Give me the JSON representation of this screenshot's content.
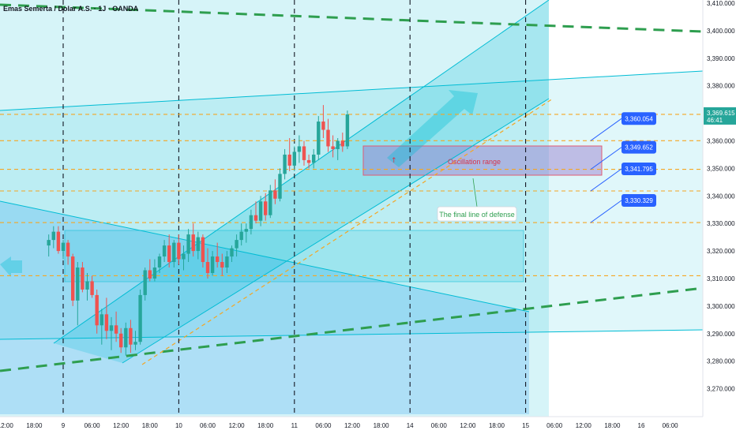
{
  "chart_data": {
    "type": "candlestick",
    "title": "Emas Semerta / Dolar A.S. · 1J · OANDA",
    "ylim": [
      3265,
      3410
    ],
    "y_ticks": [
      {
        "value": 3270,
        "label": "3,270.000"
      },
      {
        "value": 3280,
        "label": "3,280.000"
      },
      {
        "value": 3290,
        "label": "3,290.000"
      },
      {
        "value": 3300,
        "label": "3,300.000"
      },
      {
        "value": 3310,
        "label": "3,310.000"
      },
      {
        "value": 3320,
        "label": "3,320.000"
      },
      {
        "value": 3330,
        "label": "3,330.000"
      },
      {
        "value": 3340,
        "label": "3,340.000"
      },
      {
        "value": 3350,
        "label": "3,350.000"
      },
      {
        "value": 3360,
        "label": "3,360.000"
      },
      {
        "value": 3370,
        "label": "3,370.000"
      },
      {
        "value": 3380,
        "label": "3,380.000"
      },
      {
        "value": 3390,
        "label": "3,390.000"
      },
      {
        "value": 3400,
        "label": "3,400.000"
      },
      {
        "value": 3410,
        "label": "3,410.000"
      }
    ],
    "x_ticks": [
      {
        "bar": -7,
        "label": "12:00"
      },
      {
        "bar": -1,
        "label": "18:00"
      },
      {
        "bar": 5,
        "label": "9"
      },
      {
        "bar": 11,
        "label": "06:00"
      },
      {
        "bar": 17,
        "label": "12:00"
      },
      {
        "bar": 23,
        "label": "18:00"
      },
      {
        "bar": 29,
        "label": "10"
      },
      {
        "bar": 35,
        "label": "06:00"
      },
      {
        "bar": 41,
        "label": "12:00"
      },
      {
        "bar": 47,
        "label": "18:00"
      },
      {
        "bar": 53,
        "label": "11"
      },
      {
        "bar": 59,
        "label": "06:00"
      },
      {
        "bar": 65,
        "label": "12:00"
      },
      {
        "bar": 71,
        "label": "18:00"
      },
      {
        "bar": 77,
        "label": "14"
      },
      {
        "bar": 83,
        "label": "06:00"
      },
      {
        "bar": 89,
        "label": "12:00"
      },
      {
        "bar": 95,
        "label": "18:00"
      },
      {
        "bar": 101,
        "label": "15"
      },
      {
        "bar": 107,
        "label": "06:00"
      },
      {
        "bar": 113,
        "label": "12:00"
      },
      {
        "bar": 119,
        "label": "18:00"
      },
      {
        "bar": 125,
        "label": "16"
      },
      {
        "bar": 131,
        "label": "06:00"
      }
    ],
    "day_separators": [
      5,
      29,
      53,
      77,
      101
    ],
    "candles": [
      [
        3322,
        3326,
        3318,
        3324
      ],
      [
        3324,
        3329,
        3321,
        3327
      ],
      [
        3327,
        3329,
        3319,
        3320
      ],
      [
        3320,
        3324,
        3317,
        3323
      ],
      [
        3323,
        3324,
        3315,
        3318
      ],
      [
        3318,
        3319,
        3300,
        3302
      ],
      [
        3302,
        3316,
        3293,
        3314
      ],
      [
        3314,
        3316,
        3305,
        3306
      ],
      [
        3306,
        3312,
        3302,
        3309
      ],
      [
        3309,
        3311,
        3303,
        3304
      ],
      [
        3304,
        3306,
        3290,
        3293
      ],
      [
        3293,
        3299,
        3286,
        3297
      ],
      [
        3297,
        3303,
        3288,
        3291
      ],
      [
        3291,
        3296,
        3284,
        3293
      ],
      [
        3293,
        3298,
        3287,
        3290
      ],
      [
        3290,
        3292,
        3283,
        3285
      ],
      [
        3285,
        3294,
        3282,
        3292
      ],
      [
        3292,
        3295,
        3283,
        3286
      ],
      [
        3286,
        3291,
        3284,
        3287
      ],
      [
        3287,
        3306,
        3286,
        3304
      ],
      [
        3304,
        3314,
        3302,
        3313
      ],
      [
        3313,
        3317,
        3309,
        3310
      ],
      [
        3310,
        3317,
        3309,
        3314
      ],
      [
        3314,
        3319,
        3312,
        3318
      ],
      [
        3318,
        3324,
        3316,
        3322
      ],
      [
        3322,
        3326,
        3314,
        3316
      ],
      [
        3316,
        3324,
        3314,
        3323
      ],
      [
        3323,
        3326,
        3315,
        3317
      ],
      [
        3317,
        3322,
        3313,
        3319
      ],
      [
        3319,
        3328,
        3316,
        3326
      ],
      [
        3326,
        3330,
        3318,
        3320
      ],
      [
        3320,
        3327,
        3317,
        3325
      ],
      [
        3325,
        3326,
        3314,
        3316
      ],
      [
        3316,
        3321,
        3310,
        3312
      ],
      [
        3312,
        3320,
        3311,
        3318
      ],
      [
        3318,
        3323,
        3314,
        3316
      ],
      [
        3316,
        3319,
        3311,
        3314
      ],
      [
        3314,
        3320,
        3312,
        3318
      ],
      [
        3318,
        3322,
        3316,
        3321
      ],
      [
        3321,
        3326,
        3318,
        3324
      ],
      [
        3324,
        3330,
        3322,
        3327
      ],
      [
        3327,
        3330,
        3323,
        3328
      ],
      [
        3328,
        3335,
        3326,
        3333
      ],
      [
        3333,
        3338,
        3330,
        3331
      ],
      [
        3331,
        3340,
        3329,
        3338
      ],
      [
        3338,
        3341,
        3331,
        3333
      ],
      [
        3333,
        3344,
        3332,
        3342
      ],
      [
        3342,
        3346,
        3337,
        3339
      ],
      [
        3339,
        3350,
        3338,
        3348
      ],
      [
        3348,
        3357,
        3346,
        3355
      ],
      [
        3355,
        3361,
        3349,
        3351
      ],
      [
        3351,
        3358,
        3349,
        3356
      ],
      [
        3356,
        3362,
        3352,
        3358
      ],
      [
        3358,
        3360,
        3351,
        3353
      ],
      [
        3353,
        3355,
        3350,
        3352
      ],
      [
        3352,
        3357,
        3350,
        3355
      ],
      [
        3355,
        3369,
        3353,
        3367
      ],
      [
        3367,
        3373,
        3361,
        3364
      ],
      [
        3364,
        3368,
        3356,
        3358
      ],
      [
        3358,
        3362,
        3354,
        3357
      ],
      [
        3357,
        3361,
        3353,
        3360
      ],
      [
        3360,
        3363,
        3356,
        3358
      ],
      [
        3358,
        3371,
        3357,
        3369.6
      ]
    ],
    "candle_start_bar": 2,
    "levels": [
      {
        "value": 3360.054,
        "label": "3,360.054"
      },
      {
        "value": 3349.652,
        "label": "3,349.652"
      },
      {
        "value": 3341.795,
        "label": "3,341.795"
      },
      {
        "value": 3330.329,
        "label": "3,330.329"
      }
    ],
    "current_price": {
      "value": 3369.615,
      "label": "3,369.615",
      "countdown": "46:41"
    },
    "annotations": {
      "oscillation": "Oscillation range",
      "defense": "The final line of defense"
    },
    "colors": {
      "up": "#26a69a",
      "down": "#ef5350",
      "channel": "#00bcd4",
      "level": "#f5a623",
      "trend": "#2e9e4f",
      "label_bg": "#2962ff",
      "price_bg": "#26a69a"
    }
  }
}
